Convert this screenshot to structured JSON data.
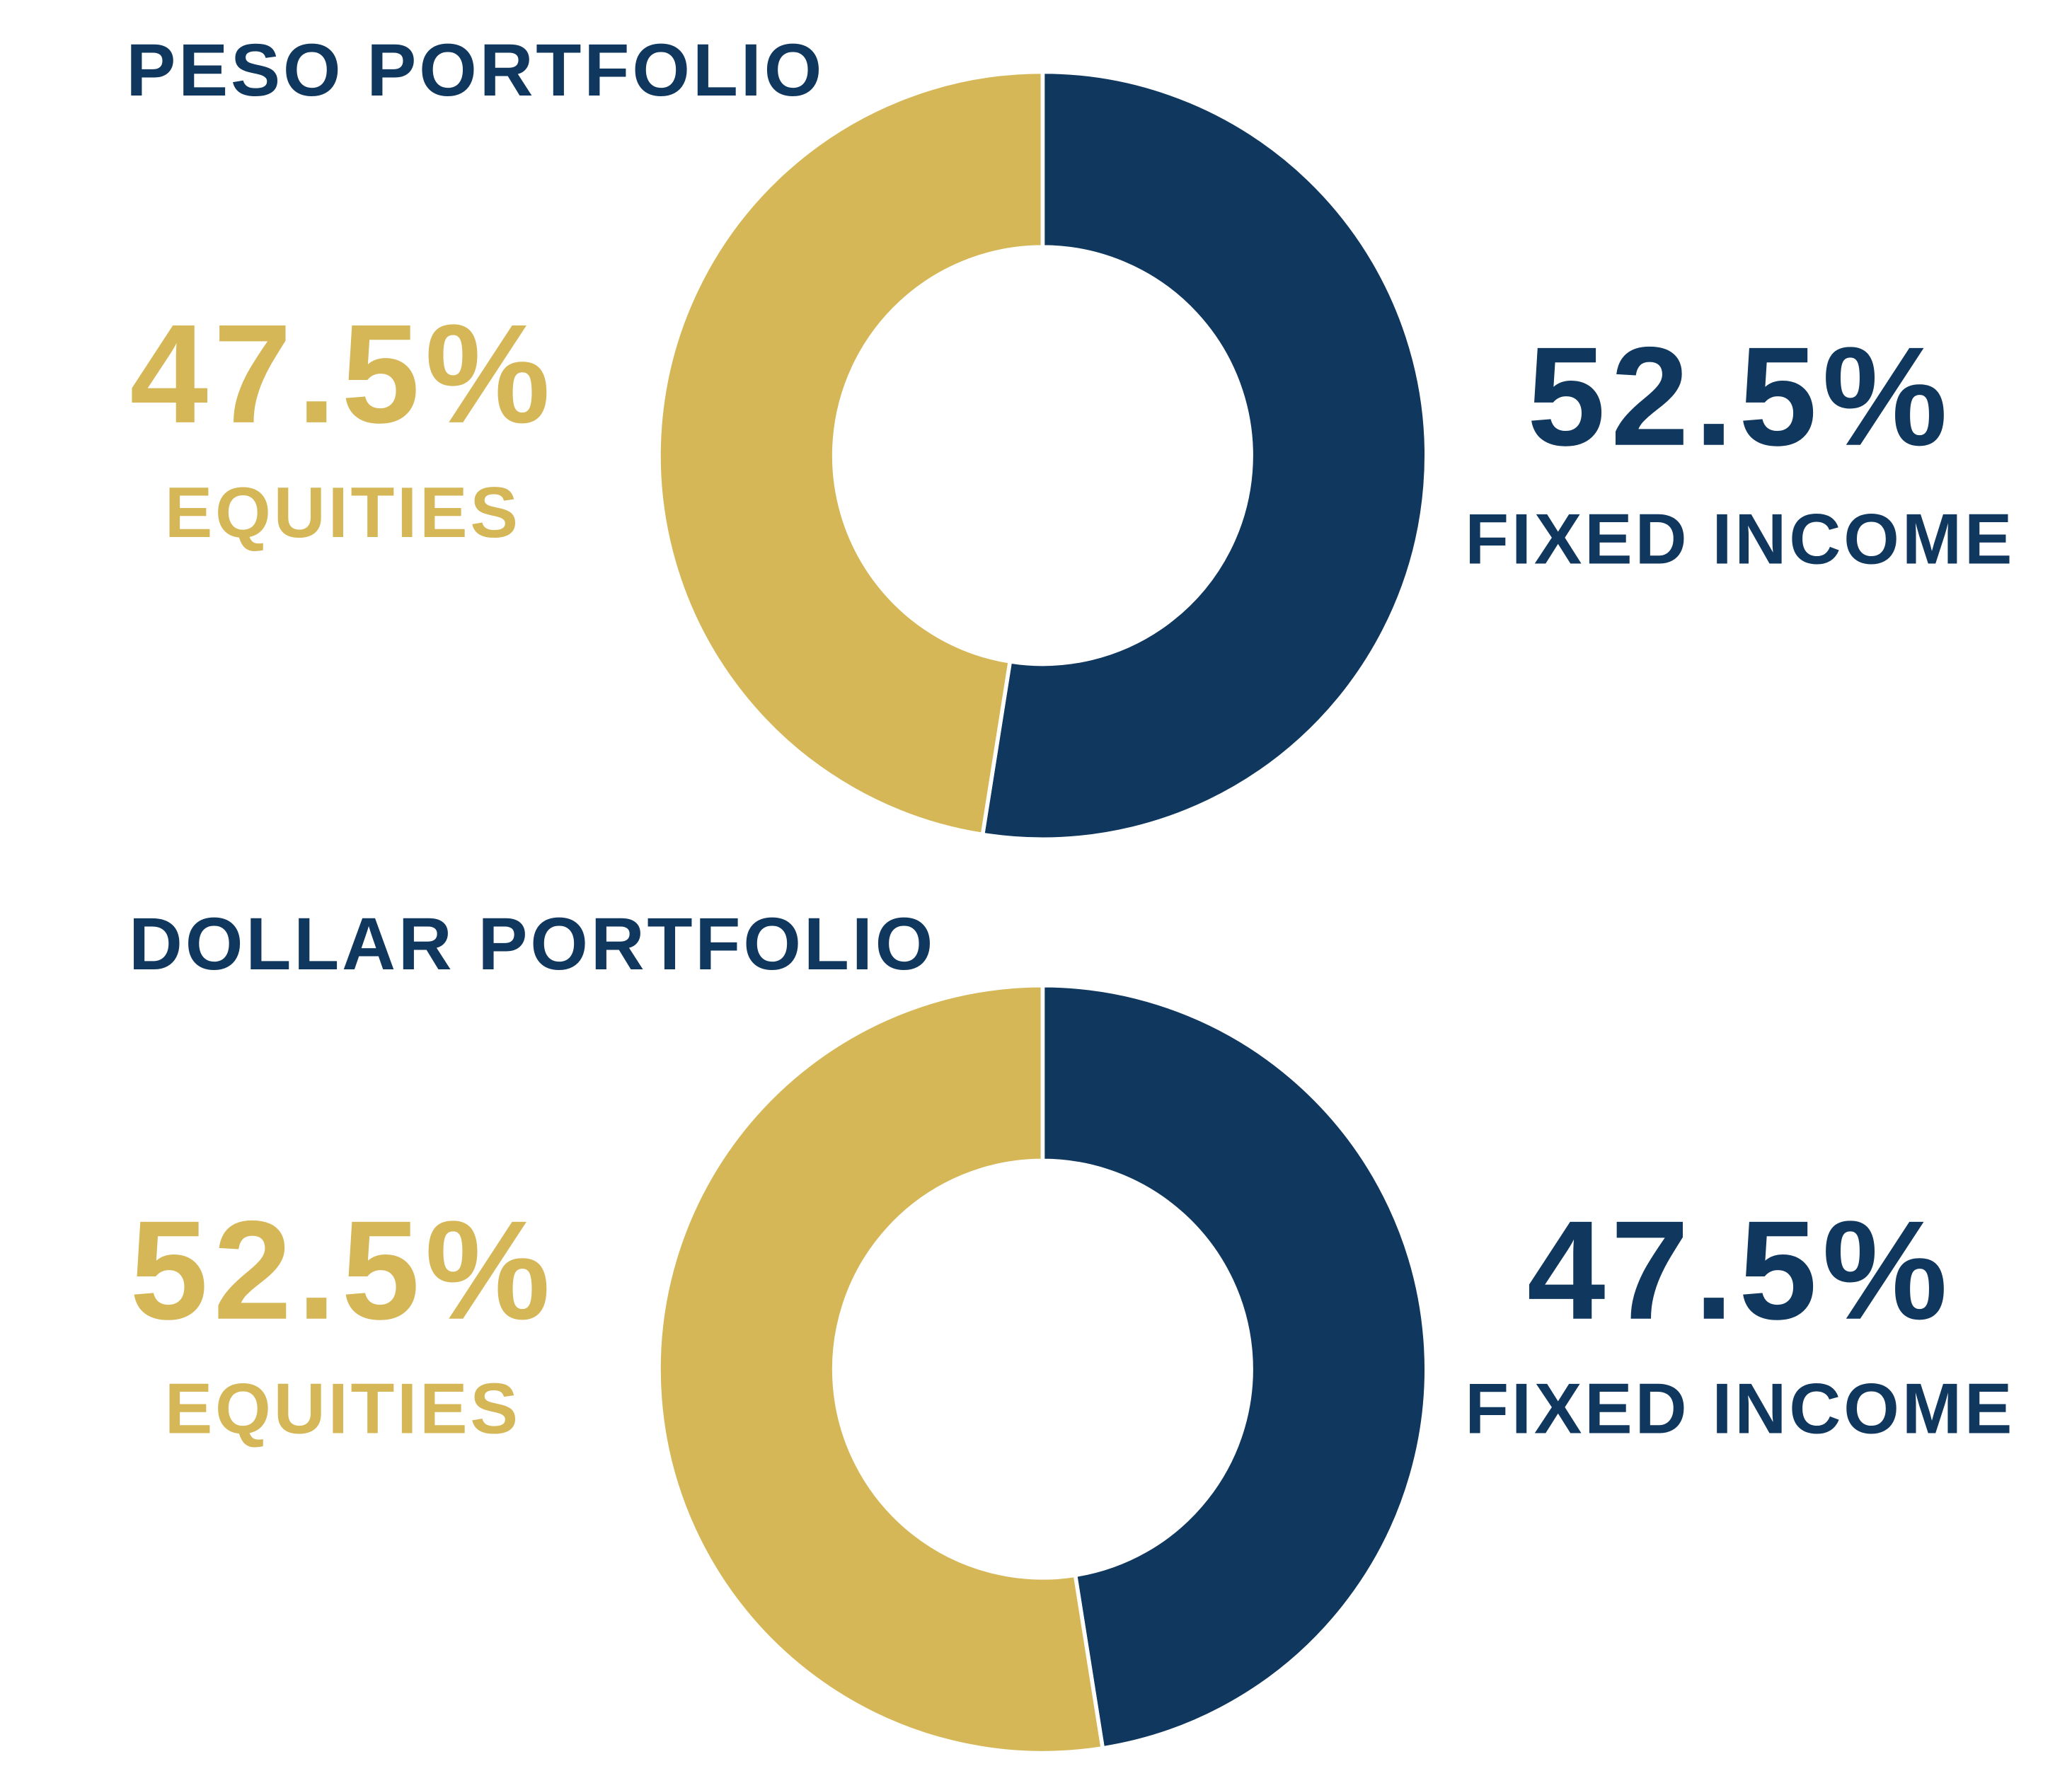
{
  "chart_data": [
    {
      "type": "pie",
      "title": "PESO PORTFOLIO",
      "categories": [
        "FIXED INCOME",
        "EQUITIES"
      ],
      "values": [
        52.5,
        47.5
      ],
      "value_labels": [
        "52.5%",
        "47.5%"
      ],
      "colors": [
        "#10375e",
        "#d5b758"
      ],
      "donut": true
    },
    {
      "type": "pie",
      "title": "DOLLAR PORTFOLIO",
      "categories": [
        "FIXED INCOME",
        "EQUITIES"
      ],
      "values": [
        47.5,
        52.5
      ],
      "value_labels": [
        "47.5%",
        "52.5%"
      ],
      "colors": [
        "#10375e",
        "#d5b758"
      ],
      "donut": true
    }
  ]
}
